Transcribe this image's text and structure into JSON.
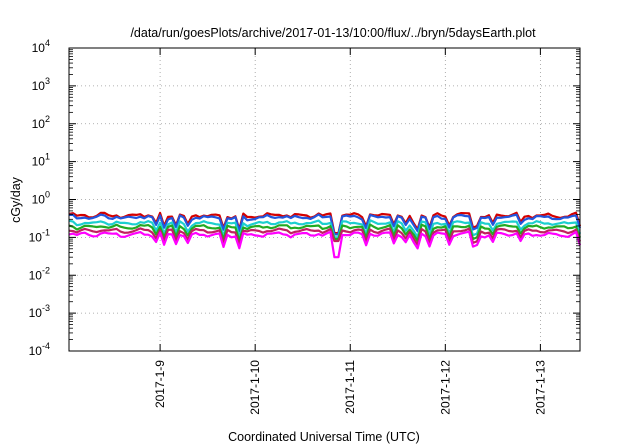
{
  "chart_data": {
    "type": "line",
    "title": "/data/run/goesPlots/archive/2017-01-13/10:00/flux/../bryn/5daysEarth.plot",
    "xlabel": "Coordinated Universal Time (UTC)",
    "ylabel": "cGy/day",
    "yscale": "log",
    "ylim": [
      0.0001,
      10000
    ],
    "xlim": [
      "2017-01-08T01:00",
      "2017-01-13T10:00"
    ],
    "grid": true,
    "legend": "none",
    "y_ticks": [
      {
        "value": 0.0001,
        "base": "10",
        "exp": "-4"
      },
      {
        "value": 0.001,
        "base": "10",
        "exp": "-3"
      },
      {
        "value": 0.01,
        "base": "10",
        "exp": "-2"
      },
      {
        "value": 0.1,
        "base": "10",
        "exp": "-1"
      },
      {
        "value": 1,
        "base": "10",
        "exp": "0"
      },
      {
        "value": 10,
        "base": "10",
        "exp": "1"
      },
      {
        "value": 100,
        "base": "10",
        "exp": "2"
      },
      {
        "value": 1000,
        "base": "10",
        "exp": "3"
      },
      {
        "value": 10000,
        "base": "10",
        "exp": "4"
      }
    ],
    "x_ticks": [
      {
        "value": "2017-01-09T00:00",
        "label": "2017-1-9"
      },
      {
        "value": "2017-01-10T00:00",
        "label": "2017-1-10"
      },
      {
        "value": "2017-01-11T00:00",
        "label": "2017-1-11"
      },
      {
        "value": "2017-01-12T00:00",
        "label": "2017-1-12"
      },
      {
        "value": "2017-01-13T00:00",
        "label": "2017-1-13"
      }
    ],
    "series": [
      {
        "color": "#d40000",
        "base": 0.38,
        "dip": 0.13,
        "spread": 0.12
      },
      {
        "color": "#2255dd",
        "base": 0.34,
        "dip": 0.12,
        "spread": 0.12
      },
      {
        "color": "#1ccfcf",
        "base": 0.24,
        "dip": 0.1,
        "spread": 0.1
      },
      {
        "color": "#22aa22",
        "base": 0.19,
        "dip": 0.09,
        "spread": 0.09
      },
      {
        "color": "#c02060",
        "base": 0.15,
        "dip": 0.08,
        "spread": 0.08
      },
      {
        "color": "#ff00ff",
        "base": 0.12,
        "dip": 0.03,
        "spread": 0.1
      }
    ]
  }
}
